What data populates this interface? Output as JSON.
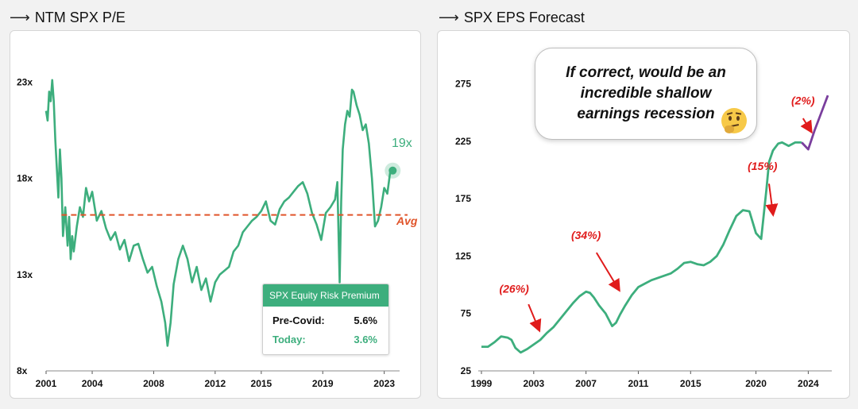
{
  "left_panel": {
    "title": "NTM SPX P/E",
    "current_label": "19x",
    "avg_label": "Avg",
    "erp_box": {
      "title": "SPX Equity Risk Premium",
      "rows": [
        {
          "label": "Pre-Covid:",
          "value": "5.6%"
        },
        {
          "label": "Today:",
          "value": "3.6%"
        }
      ]
    }
  },
  "right_panel": {
    "title": "SPX EPS Forecast",
    "bubble_text": "If correct, would be an incredible shallow earnings recession",
    "emoji": "thinking-face-icon"
  },
  "colors": {
    "green": "#3dae7d",
    "avg_line": "#e0542a",
    "forecast": "#7a3e9d",
    "annotation": "#e01b1b"
  },
  "chart_data": [
    {
      "type": "line",
      "ylim": [
        8,
        24
      ],
      "yticks": [
        8,
        13,
        18,
        23
      ],
      "ytick_labels": [
        "8x",
        "13x",
        "18x",
        "23x"
      ],
      "xlim": [
        2001,
        2024
      ],
      "xticks": [
        2001,
        2004,
        2008,
        2012,
        2015,
        2019,
        2023
      ],
      "xtick_labels": [
        "2001",
        "2004",
        "2008",
        "2012",
        "2015",
        "2019",
        "2023"
      ],
      "avg": 16.1,
      "x": [
        2001.0,
        2001.1,
        2001.2,
        2001.3,
        2001.4,
        2001.5,
        2001.6,
        2001.7,
        2001.8,
        2001.9,
        2002.0,
        2002.1,
        2002.25,
        2002.4,
        2002.5,
        2002.6,
        2002.7,
        2002.8,
        2003.0,
        2003.2,
        2003.4,
        2003.6,
        2003.8,
        2004.0,
        2004.3,
        2004.6,
        2004.9,
        2005.2,
        2005.5,
        2005.8,
        2006.1,
        2006.4,
        2006.7,
        2007.0,
        2007.3,
        2007.6,
        2007.9,
        2008.2,
        2008.5,
        2008.75,
        2008.9,
        2009.1,
        2009.3,
        2009.6,
        2009.9,
        2010.2,
        2010.5,
        2010.8,
        2011.1,
        2011.4,
        2011.7,
        2012.0,
        2012.3,
        2012.6,
        2012.9,
        2013.2,
        2013.5,
        2013.8,
        2014.1,
        2014.4,
        2014.7,
        2015.0,
        2015.3,
        2015.6,
        2015.9,
        2016.2,
        2016.5,
        2016.8,
        2017.1,
        2017.4,
        2017.7,
        2018.0,
        2018.3,
        2018.6,
        2018.9,
        2019.2,
        2019.5,
        2019.8,
        2019.95,
        2020.1,
        2020.2,
        2020.3,
        2020.45,
        2020.6,
        2020.75,
        2020.9,
        2021.0,
        2021.2,
        2021.4,
        2021.6,
        2021.8,
        2022.0,
        2022.2,
        2022.4,
        2022.6,
        2022.8,
        2023.0,
        2023.2,
        2023.4,
        2023.55
      ],
      "values": [
        21.5,
        21.0,
        22.5,
        22.0,
        23.1,
        22.0,
        20.0,
        18.5,
        17.0,
        19.5,
        18.0,
        15.0,
        16.5,
        14.5,
        16.0,
        13.8,
        15.0,
        14.2,
        15.5,
        16.5,
        16.0,
        17.5,
        16.8,
        17.3,
        15.8,
        16.3,
        15.4,
        14.8,
        15.2,
        14.3,
        14.8,
        13.7,
        14.5,
        14.6,
        13.8,
        13.1,
        13.4,
        12.4,
        11.6,
        10.5,
        9.3,
        10.5,
        12.5,
        13.8,
        14.5,
        13.8,
        12.6,
        13.4,
        12.2,
        12.8,
        11.6,
        12.6,
        13.0,
        13.2,
        13.4,
        14.2,
        14.5,
        15.2,
        15.5,
        15.8,
        16.0,
        16.3,
        16.8,
        15.8,
        15.6,
        16.4,
        16.8,
        17.0,
        17.3,
        17.6,
        17.8,
        17.2,
        16.2,
        15.6,
        14.8,
        16.2,
        16.5,
        16.9,
        17.8,
        12.6,
        16.8,
        19.5,
        20.8,
        21.5,
        21.2,
        22.6,
        22.5,
        21.8,
        21.3,
        20.5,
        20.8,
        19.8,
        18.0,
        15.5,
        15.8,
        16.5,
        17.5,
        17.2,
        18.4,
        18.4
      ]
    },
    {
      "type": "line",
      "ylim": [
        25,
        290
      ],
      "yticks": [
        25,
        75,
        125,
        175,
        225,
        275
      ],
      "ytick_labels": [
        "25",
        "75",
        "125",
        "175",
        "225",
        "275"
      ],
      "xlim": [
        1999,
        2025.8
      ],
      "xticks": [
        1999,
        2003,
        2007,
        2011,
        2015,
        2020,
        2024
      ],
      "xtick_labels": [
        "1999",
        "2003",
        "2007",
        "2011",
        "2015",
        "2020",
        "2024"
      ],
      "series": [
        {
          "x": [
            1999.0,
            1999.5,
            2000.0,
            2000.5,
            2001.0,
            2001.3,
            2001.6,
            2002.0,
            2002.5,
            2003.0,
            2003.5,
            2004.0,
            2004.5,
            2005.0,
            2005.5,
            2006.0,
            2006.5,
            2007.0,
            2007.3,
            2007.6,
            2008.0,
            2008.5,
            2009.0,
            2009.3,
            2009.6,
            2010.0,
            2010.5,
            2011.0,
            2011.5,
            2012.0,
            2012.5,
            2013.0,
            2013.5,
            2014.0,
            2014.5,
            2015.0,
            2015.5,
            2016.0,
            2016.5,
            2017.0,
            2017.5,
            2018.0,
            2018.5,
            2019.0,
            2019.5,
            2020.0,
            2020.4,
            2020.8,
            2021.0,
            2021.3,
            2021.7,
            2022.0,
            2022.5,
            2023.0,
            2023.5
          ],
          "values": [
            46,
            46,
            50,
            55,
            54,
            52,
            45,
            41,
            44,
            48,
            52,
            58,
            63,
            70,
            77,
            84,
            90,
            94,
            93,
            89,
            82,
            75,
            64,
            67,
            74,
            82,
            91,
            98,
            101,
            104,
            106,
            108,
            110,
            114,
            119,
            120,
            118,
            117,
            120,
            125,
            135,
            148,
            160,
            165,
            164,
            145,
            140,
            183,
            207,
            217,
            223,
            224,
            221,
            224,
            224
          ]
        },
        {
          "x": [
            2023.5,
            2024.0,
            2024.5,
            2025.0,
            2025.5
          ],
          "values": [
            224,
            218,
            235,
            250,
            265
          ]
        }
      ],
      "annotations": [
        "(26%)",
        "(34%)",
        "(15%)",
        "(2%)"
      ]
    }
  ]
}
